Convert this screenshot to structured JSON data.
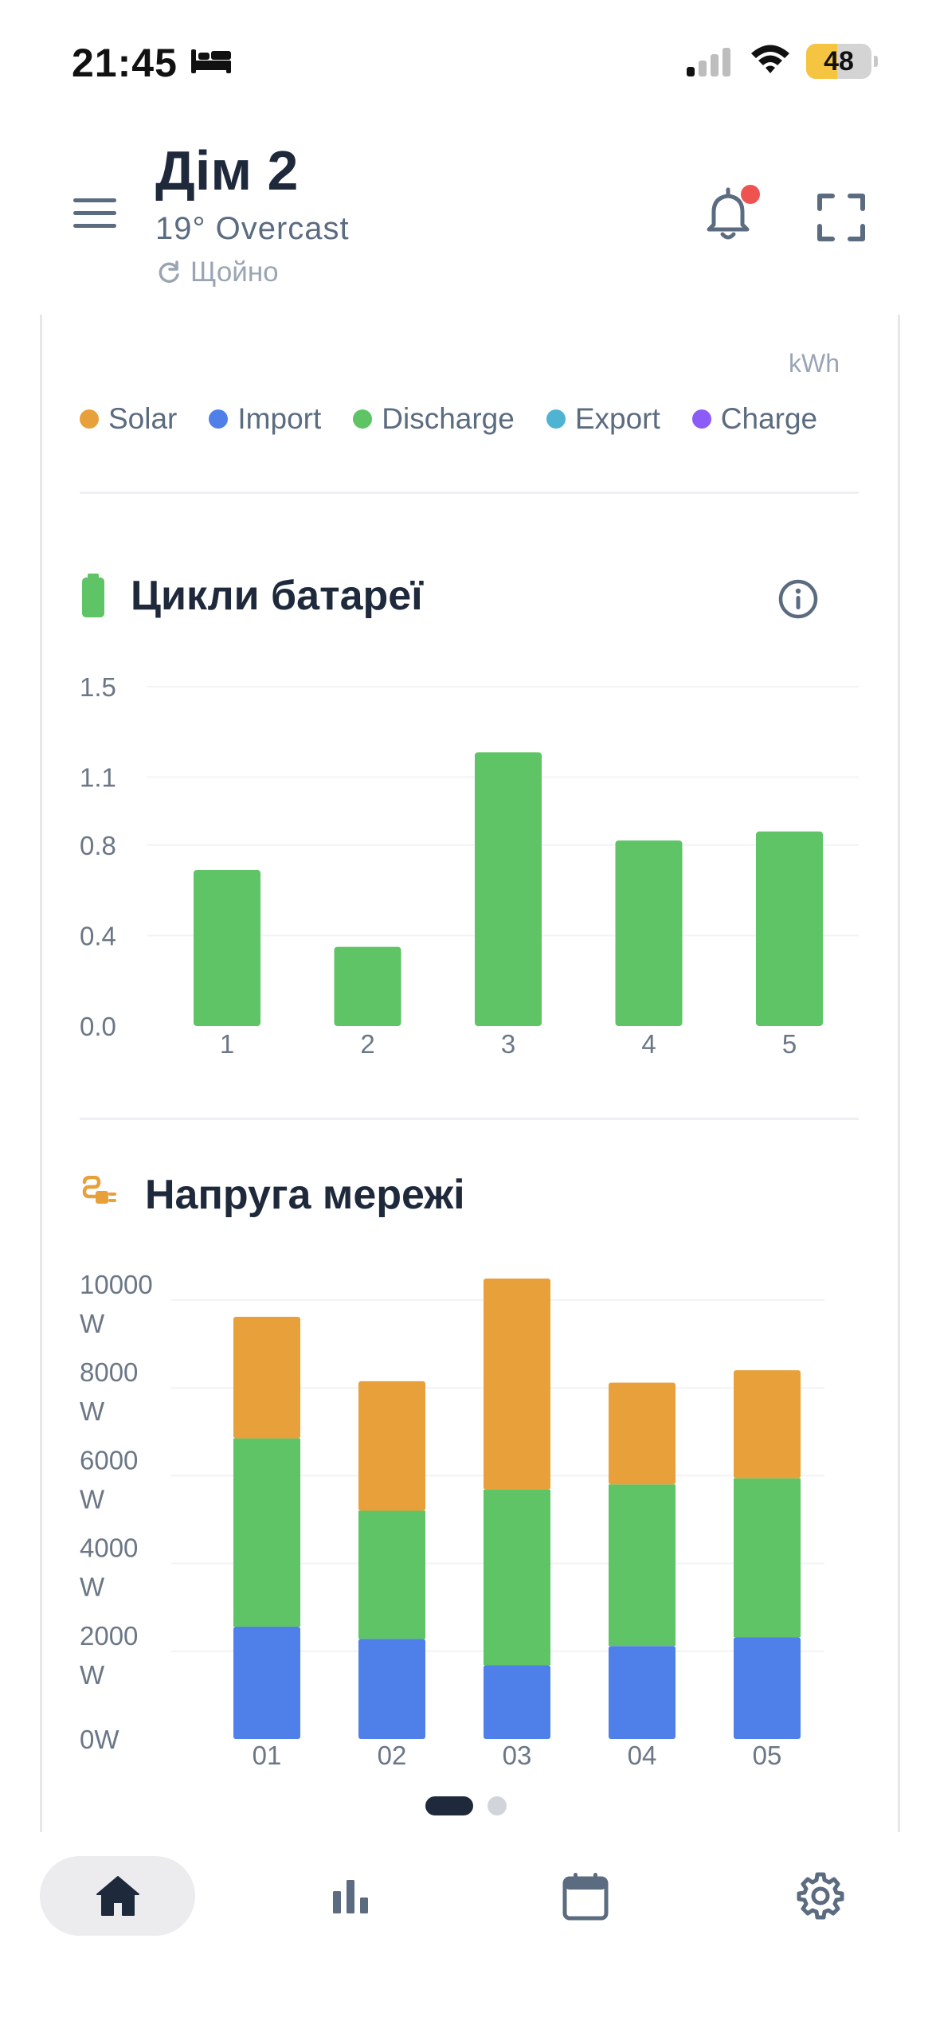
{
  "status_bar": {
    "time": "21:45",
    "battery_level": "48",
    "battery_fraction": 0.48,
    "icons": [
      "bed-icon",
      "cellular-signal-icon",
      "wifi-icon",
      "battery-icon"
    ]
  },
  "header": {
    "title": "Дім 2",
    "weather": "19° Overcast",
    "updated": "Щойно",
    "icons": [
      "menu-icon",
      "refresh-icon",
      "bell-icon",
      "expand-icon"
    ]
  },
  "energy_legend": {
    "unit": "kWh",
    "items": [
      {
        "label": "Solar",
        "color": "#e8a03a"
      },
      {
        "label": "Import",
        "color": "#4f7fe9"
      },
      {
        "label": "Discharge",
        "color": "#5ec466"
      },
      {
        "label": "Export",
        "color": "#4fb3d3"
      },
      {
        "label": "Charge",
        "color": "#8b5cf6"
      }
    ]
  },
  "battery_cycles": {
    "title": "Цикли батареї",
    "icons": [
      "battery-icon",
      "info-icon"
    ]
  },
  "grid_voltage": {
    "title": "Напруга мережі",
    "icons": [
      "plug-icon"
    ]
  },
  "chart_data": [
    {
      "type": "bar",
      "title": "Цикли батареї",
      "categories": [
        "1",
        "2",
        "3",
        "4",
        "5"
      ],
      "values": [
        0.69,
        0.35,
        1.21,
        0.82,
        0.86
      ],
      "y_ticks": [
        "0.0",
        "0.4",
        "0.8",
        "1.1",
        "1.5"
      ],
      "ylim": [
        0,
        1.5
      ],
      "color": "#5ec466",
      "grid": true
    },
    {
      "type": "bar",
      "stacked": true,
      "title": "Напруга мережі",
      "categories": [
        "01",
        "02",
        "03",
        "04",
        "05"
      ],
      "y_ticks": [
        {
          "value": 0,
          "lines": [
            "0W"
          ]
        },
        {
          "value": 2000,
          "lines": [
            "2000",
            "W"
          ]
        },
        {
          "value": 4000,
          "lines": [
            "4000",
            "W"
          ]
        },
        {
          "value": 6000,
          "lines": [
            "6000",
            "W"
          ]
        },
        {
          "value": 8000,
          "lines": [
            "8000",
            "W"
          ]
        },
        {
          "value": 10000,
          "lines": [
            "10000",
            "W"
          ]
        }
      ],
      "ylim": [
        0,
        10000
      ],
      "grid": true,
      "series": [
        {
          "name": "Import",
          "color": "#4f7fe9",
          "values": [
            2560,
            2280,
            1680,
            2120,
            2320
          ]
        },
        {
          "name": "Discharge",
          "color": "#5ec466",
          "values": [
            4290,
            2920,
            4000,
            3680,
            3620
          ]
        },
        {
          "name": "Solar",
          "color": "#e8a03a",
          "values": [
            2770,
            2950,
            4810,
            2320,
            2460
          ]
        }
      ]
    }
  ],
  "pager": {
    "count": 2,
    "active": 0
  },
  "tab_bar": {
    "tabs": [
      {
        "icon": "home-icon",
        "active": true
      },
      {
        "icon": "bar-chart-icon",
        "active": false
      },
      {
        "icon": "calendar-icon",
        "active": false
      },
      {
        "icon": "settings-icon",
        "active": false
      }
    ]
  }
}
